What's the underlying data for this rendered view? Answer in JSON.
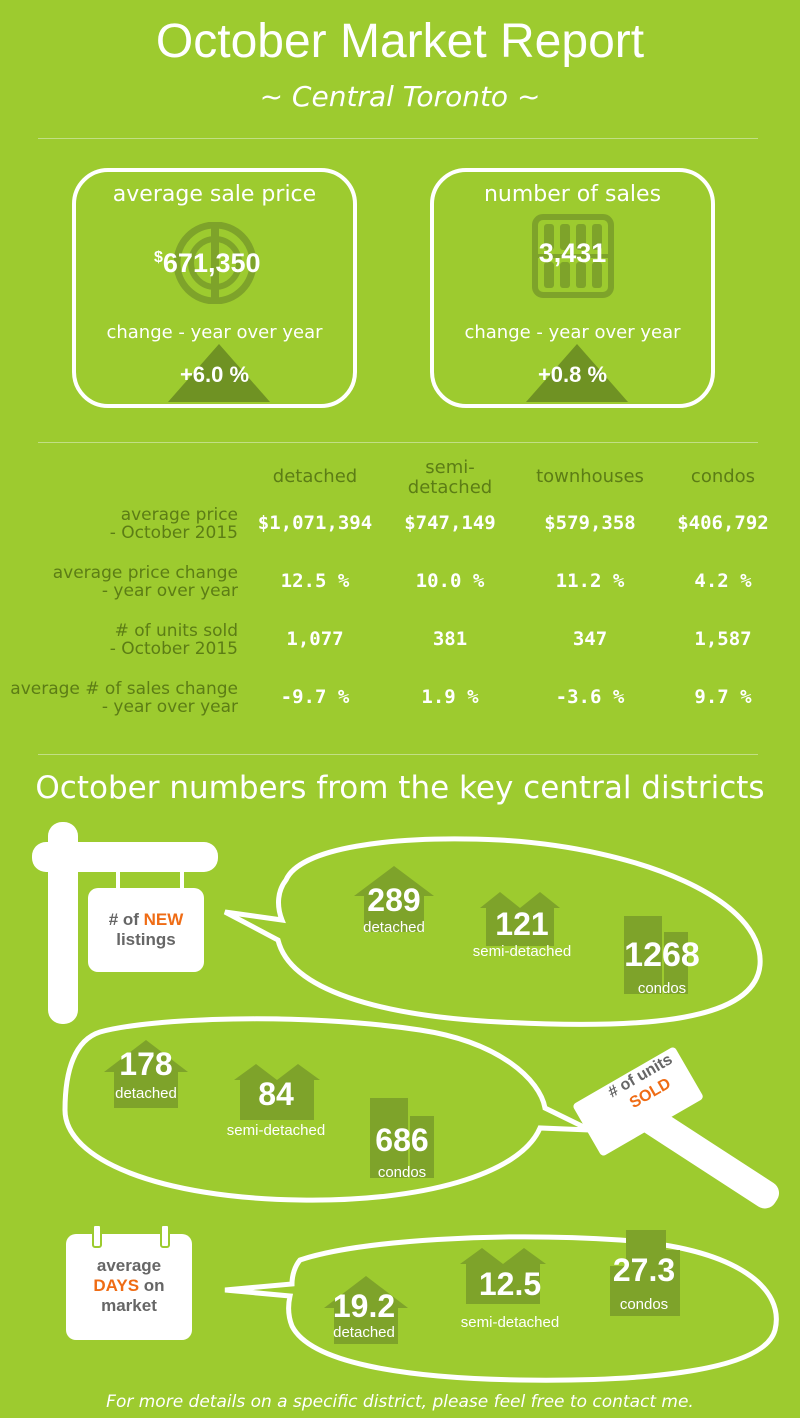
{
  "header": {
    "title": "October Market Report",
    "subtitle": "~ Central Toronto ~"
  },
  "summary": {
    "price": {
      "title": "average sale price",
      "currency": "$",
      "value": "671,350",
      "change_label": "change - year over year",
      "change": "+6.0 %",
      "icon": "dollar-coin-icon"
    },
    "sales": {
      "title": "number of sales",
      "value": "3,431",
      "change_label": "change - year over year",
      "change": "+0.8 %",
      "icon": "abacus-icon"
    }
  },
  "table": {
    "columns": [
      "detached",
      "semi-\ndetached",
      "townhouses",
      "condos"
    ],
    "rows": [
      {
        "label": [
          "average price",
          "- October 2015"
        ],
        "values": [
          "$1,071,394",
          "$747,149",
          "$579,358",
          "$406,792"
        ]
      },
      {
        "label": [
          "average price change",
          "- year over year"
        ],
        "values": [
          "12.5 %",
          "10.0 %",
          "11.2 %",
          "4.2 %"
        ]
      },
      {
        "label": [
          "# of units sold",
          "- October 2015"
        ],
        "values": [
          "1,077",
          "381",
          "347",
          "1,587"
        ]
      },
      {
        "label": [
          "average # of sales change",
          "- year over year"
        ],
        "values": [
          "-9.7 %",
          "1.9 %",
          "-3.6 %",
          "9.7 %"
        ]
      }
    ]
  },
  "districts": {
    "title": "October numbers from the key central districts",
    "new_listings": {
      "sign": {
        "prefix": "# of ",
        "accent": "NEW",
        "line2": "listings"
      },
      "detached": {
        "value": "289",
        "label": "detached"
      },
      "semi": {
        "value": "121",
        "label": "semi-detached"
      },
      "condos": {
        "value": "1268",
        "label": "condos"
      }
    },
    "units_sold": {
      "sign": {
        "line1": "# of units",
        "accent": "SOLD"
      },
      "detached": {
        "value": "178",
        "label": "detached"
      },
      "semi": {
        "value": "84",
        "label": "semi-detached"
      },
      "condos": {
        "value": "686",
        "label": "condos"
      }
    },
    "days_on_market": {
      "sign": {
        "line1": "average",
        "accent": "DAYS",
        "line2_rest": " on",
        "line3": "market"
      },
      "detached": {
        "value": "19.2",
        "label": "detached"
      },
      "semi": {
        "value": "12.5",
        "label": "semi-detached"
      },
      "condos": {
        "value": "27.3",
        "label": "condos"
      }
    }
  },
  "footer": "For more details on a specific district, please feel free to contact me.",
  "colors": {
    "background": "#9dcb2f",
    "dark_green": "#5c7d15",
    "icon_green": "#7ea32a",
    "accent_orange": "#ef6c15"
  }
}
